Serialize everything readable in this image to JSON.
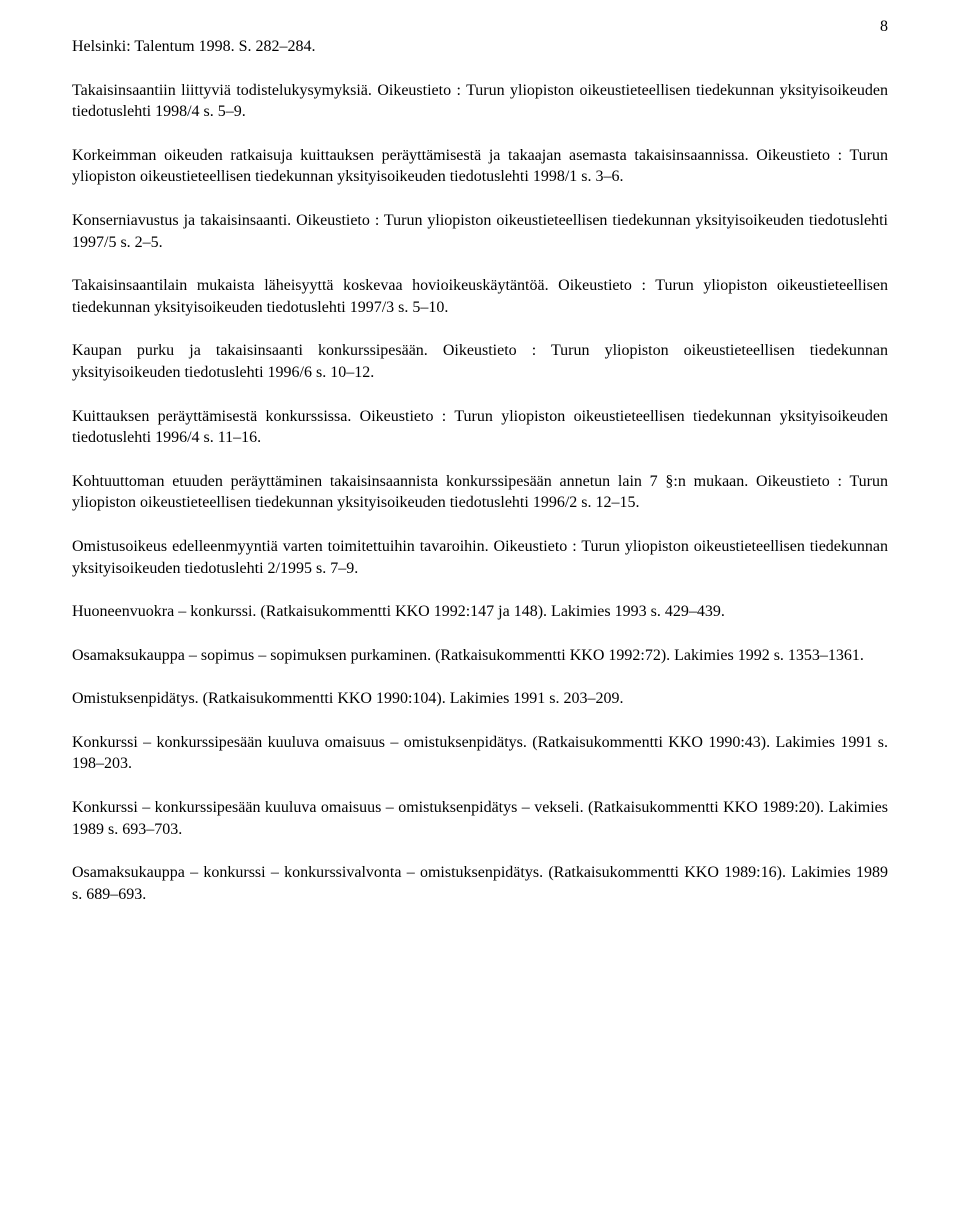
{
  "page_number": "8",
  "font": {
    "family": "Times New Roman",
    "size_pt": 12,
    "color": "#000000"
  },
  "background_color": "#ffffff",
  "paragraphs": [
    "Helsinki: Talentum 1998. S. 282–284.",
    "Takaisinsaantiin liittyviä todistelukysymyksiä. Oikeustieto : Turun yliopiston oikeustieteellisen tiedekunnan yksityisoikeuden tiedotuslehti 1998/4 s. 5–9.",
    "Korkeimman oikeuden ratkaisuja kuittauksen peräyttämisestä ja takaajan asemasta takaisinsaannissa. Oikeustieto : Turun yliopiston oikeustieteellisen tiedekunnan yksityisoikeuden tiedotuslehti 1998/1 s. 3–6.",
    "Konserniavustus ja takaisinsaanti. Oikeustieto : Turun yliopiston oikeustieteellisen tiedekunnan yksityisoikeuden tiedotuslehti 1997/5 s. 2–5.",
    "Takaisinsaantilain mukaista läheisyyttä koskevaa hovioikeuskäytäntöä. Oikeustieto : Turun yliopiston oikeustieteellisen tiedekunnan yksityisoikeuden tiedotuslehti 1997/3 s. 5–10.",
    "Kaupan purku ja takaisinsaanti konkurssipesään. Oikeustieto : Turun yliopiston oikeustieteellisen tiedekunnan yksityisoikeuden tiedotuslehti 1996/6 s. 10–12.",
    "Kuittauksen peräyttämisestä konkurssissa. Oikeustieto : Turun yliopiston oikeustieteellisen tiedekunnan yksityisoikeuden tiedotuslehti 1996/4 s. 11–16.",
    "Kohtuuttoman etuuden peräyttäminen takaisinsaannista konkurssipesään annetun lain 7 §:n mukaan. Oikeustieto : Turun yliopiston oikeustieteellisen tiedekunnan yksityisoikeuden tiedotuslehti 1996/2 s. 12–15.",
    "Omistusoikeus edelleenmyyntiä varten toimitettuihin tavaroihin. Oikeustieto : Turun yliopiston oikeustieteellisen tiedekunnan yksityisoikeuden tiedotuslehti 2/1995 s. 7–9.",
    "Huoneenvuokra – konkurssi. (Ratkaisukommentti KKO 1992:147 ja 148). Lakimies 1993 s. 429–439.",
    "Osamaksukauppa – sopimus – sopimuksen purkaminen. (Ratkaisukommentti KKO 1992:72). Lakimies 1992 s. 1353–1361.",
    "Omistuksenpidätys. (Ratkaisukommentti KKO 1990:104). Lakimies 1991 s. 203–209.",
    "Konkurssi – konkurssipesään kuuluva omaisuus – omistuksenpidätys. (Ratkaisukommentti KKO 1990:43). Lakimies 1991 s. 198–203.",
    "Konkurssi – konkurssipesään kuuluva omaisuus – omistuksenpidätys – vekseli. (Ratkaisukommentti KKO 1989:20). Lakimies 1989 s. 693–703.",
    "Osamaksukauppa – konkurssi – konkurssivalvonta – omistuksenpidätys. (Ratkaisukommentti KKO 1989:16). Lakimies 1989 s. 689–693."
  ]
}
